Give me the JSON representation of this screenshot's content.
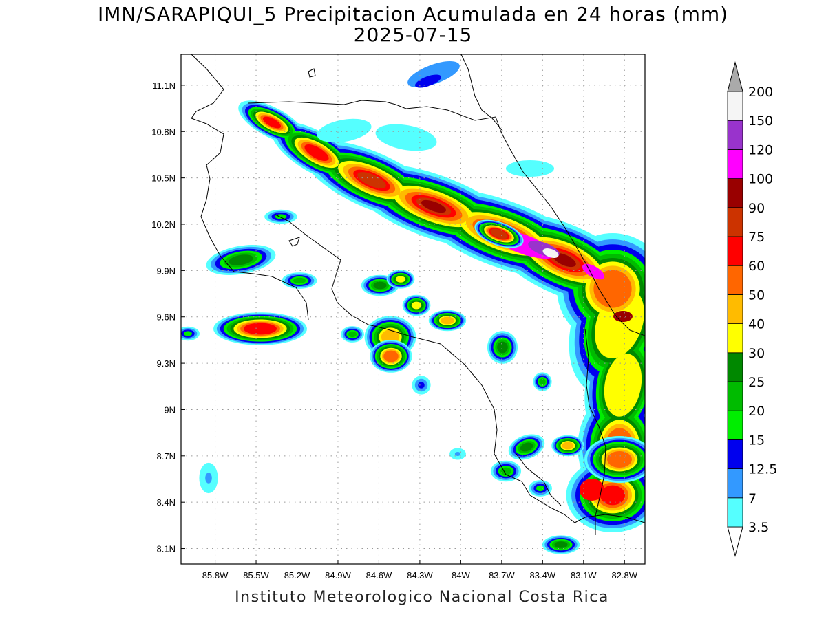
{
  "title": {
    "line1": "IMN/SARAPIQUI_5 Precipitacion Acumulada en 24 horas (mm)",
    "line2": "2025-07-15"
  },
  "footer": "Instituto Meteorologico Nacional Costa Rica",
  "map": {
    "lon_range": [
      -86.05,
      -82.65
    ],
    "lat_range": [
      8.0,
      11.3
    ],
    "lon_ticks": [
      {
        "value": -85.8,
        "label": "85.8W"
      },
      {
        "value": -85.5,
        "label": "85.5W"
      },
      {
        "value": -85.2,
        "label": "85.2W"
      },
      {
        "value": -84.9,
        "label": "84.9W"
      },
      {
        "value": -84.6,
        "label": "84.6W"
      },
      {
        "value": -84.3,
        "label": "84.3W"
      },
      {
        "value": -84.0,
        "label": "84W"
      },
      {
        "value": -83.7,
        "label": "83.7W"
      },
      {
        "value": -83.4,
        "label": "83.4W"
      },
      {
        "value": -83.1,
        "label": "83.1W"
      },
      {
        "value": -82.8,
        "label": "82.8W"
      }
    ],
    "lat_ticks": [
      {
        "value": 8.1,
        "label": "8.1N"
      },
      {
        "value": 8.4,
        "label": "8.4N"
      },
      {
        "value": 8.7,
        "label": "8.7N"
      },
      {
        "value": 9.0,
        "label": "9N"
      },
      {
        "value": 9.3,
        "label": "9.3N"
      },
      {
        "value": 9.6,
        "label": "9.6N"
      },
      {
        "value": 9.9,
        "label": "9.9N"
      },
      {
        "value": 10.2,
        "label": "10.2N"
      },
      {
        "value": 10.5,
        "label": "10.5N"
      },
      {
        "value": 10.8,
        "label": "10.8N"
      },
      {
        "value": 11.1,
        "label": "11.1N"
      }
    ],
    "grid": "dotted"
  },
  "colorbar": {
    "levels": [
      {
        "label": "3.5",
        "color": "#55ffff"
      },
      {
        "label": "7",
        "color": "#3399ff"
      },
      {
        "label": "12.5",
        "color": "#0000ee"
      },
      {
        "label": "15",
        "color": "#00ee00"
      },
      {
        "label": "20",
        "color": "#00bb00"
      },
      {
        "label": "25",
        "color": "#008800"
      },
      {
        "label": "30",
        "color": "#ffff00"
      },
      {
        "label": "40",
        "color": "#ffbb00"
      },
      {
        "label": "50",
        "color": "#ff6600"
      },
      {
        "label": "60",
        "color": "#ff0000"
      },
      {
        "label": "75",
        "color": "#cc3300"
      },
      {
        "label": "90",
        "color": "#990000"
      },
      {
        "label": "100",
        "color": "#ff00ff"
      },
      {
        "label": "120",
        "color": "#9933cc"
      },
      {
        "label": "150",
        "color": "#f5f5f5"
      },
      {
        "label": "200",
        "color": "#aaaaaa"
      }
    ],
    "under_color": "#ffffff",
    "over_color": "#aaaaaa"
  }
}
